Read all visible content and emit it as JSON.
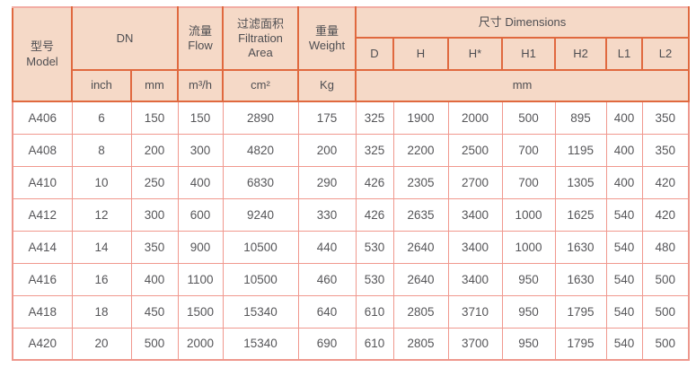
{
  "table": {
    "header": {
      "model_zh": "型号",
      "model_en": "Model",
      "dn": "DN",
      "flow_zh": "流量",
      "flow_en": "Flow",
      "area_zh": "过滤面积",
      "area_en": "Filtration Area",
      "weight_zh": "重量",
      "weight_en": "Weight",
      "dimensions": "尺寸 Dimensions",
      "dim_cols": [
        "D",
        "H",
        "H*",
        "H1",
        "H2",
        "L1",
        "L2"
      ],
      "units": {
        "inch": "inch",
        "mm": "mm",
        "flow": "m³/h",
        "area": "cm²",
        "weight": "Kg",
        "dims": "mm"
      }
    },
    "rows": [
      [
        "A406",
        "6",
        "150",
        "150",
        "2890",
        "175",
        "325",
        "1900",
        "2000",
        "500",
        "895",
        "400",
        "350"
      ],
      [
        "A408",
        "8",
        "200",
        "300",
        "4820",
        "200",
        "325",
        "2200",
        "2500",
        "700",
        "1195",
        "400",
        "350"
      ],
      [
        "A410",
        "10",
        "250",
        "400",
        "6830",
        "290",
        "426",
        "2305",
        "2700",
        "700",
        "1305",
        "400",
        "420"
      ],
      [
        "A412",
        "12",
        "300",
        "600",
        "9240",
        "330",
        "426",
        "2635",
        "3400",
        "1000",
        "1625",
        "540",
        "420"
      ],
      [
        "A414",
        "14",
        "350",
        "900",
        "10500",
        "440",
        "530",
        "2640",
        "3400",
        "1000",
        "1630",
        "540",
        "480"
      ],
      [
        "A416",
        "16",
        "400",
        "1100",
        "10500",
        "460",
        "530",
        "2640",
        "3400",
        "950",
        "1630",
        "540",
        "500"
      ],
      [
        "A418",
        "18",
        "450",
        "1500",
        "15340",
        "640",
        "610",
        "2805",
        "3710",
        "950",
        "1795",
        "540",
        "500"
      ],
      [
        "A420",
        "20",
        "500",
        "2000",
        "15340",
        "690",
        "610",
        "2805",
        "3700",
        "950",
        "1795",
        "540",
        "500"
      ]
    ]
  },
  "colors": {
    "header_bg": "#f5d9c7",
    "header_border": "#e0693f",
    "body_border": "#f0988e",
    "outer_border": "#ee978d",
    "text": "#565659"
  }
}
